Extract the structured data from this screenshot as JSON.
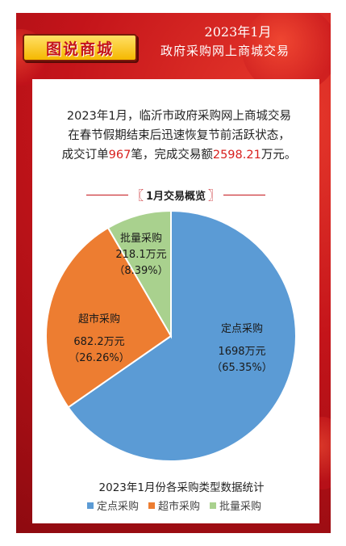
{
  "header": {
    "banner": "图说商城",
    "line1": "2023年1月",
    "line2": "政府采购网上商城交易"
  },
  "intro": {
    "line1": "2023年1月，临沂市政府采购网上商城交易",
    "line2": "在春节假期结束后迅速恢复节前活跃状态，",
    "line3_pre": "成交订单",
    "orders": "967",
    "line3_mid": "笔，完成交易额",
    "amount": "2598.21",
    "line3_post": "万元。"
  },
  "section": {
    "left": "〖",
    "title": "1月交易概览",
    "right": "〗"
  },
  "colors": {
    "定点采购": "#5b9bd5",
    "超市采购": "#ed7d31",
    "批量采购": "#a9d18e",
    "accent": "#d8201e"
  },
  "chart_data": {
    "type": "pie",
    "title": "2023年1月份各采购类型数据统计",
    "legend_position": "bottom",
    "slices": [
      {
        "name": "定点采购",
        "value": 1698,
        "value_label": "1698万元",
        "pct_label": "（65.35%）",
        "color": "#5b9bd5"
      },
      {
        "name": "超市采购",
        "value": 682.2,
        "value_label": "682.2万元",
        "pct_label": "（26.26%）",
        "color": "#ed7d31"
      },
      {
        "name": "批量采购",
        "value": 218.1,
        "value_label": "218.1万元",
        "pct_label": "（8.39%）",
        "color": "#a9d18e"
      }
    ]
  }
}
